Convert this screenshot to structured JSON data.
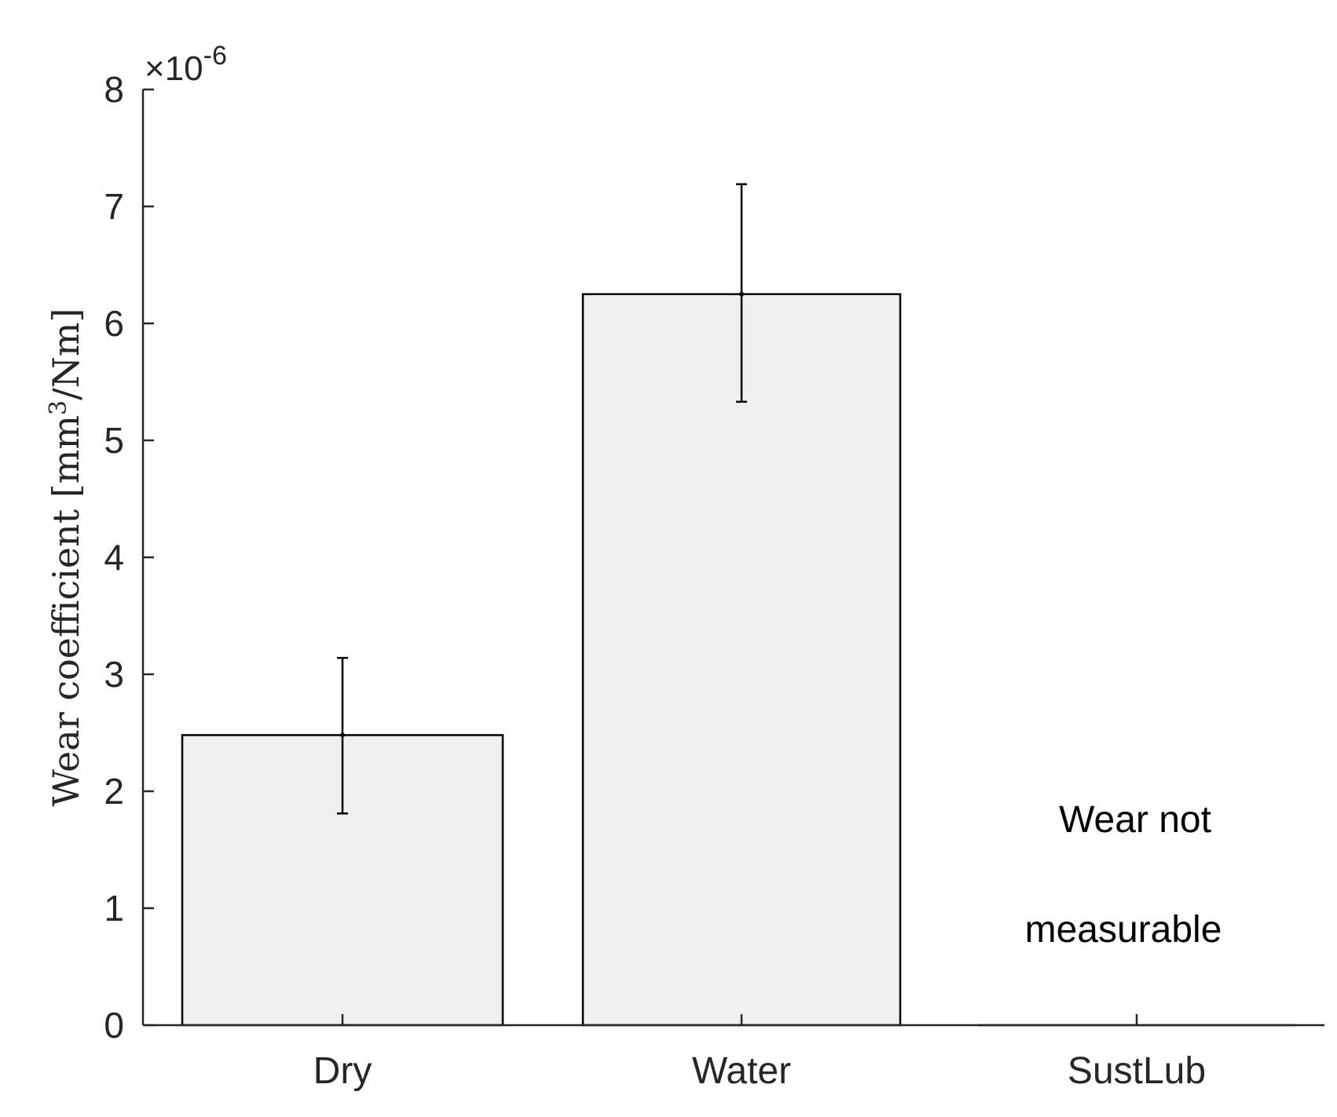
{
  "chart_data": {
    "type": "bar",
    "title": "",
    "categories": [
      "Dry",
      "Water",
      "SustLub"
    ],
    "values": [
      2.48,
      6.25,
      0
    ],
    "error_low": [
      1.81,
      5.33,
      null
    ],
    "error_high": [
      3.14,
      7.19,
      null
    ],
    "xlabel": "",
    "ylabel": "Wear coefficient [mm",
    "ylabel_sup": "3",
    "ylabel_tail": "/Nm]",
    "y_multiplier": "×10",
    "y_multiplier_exp": "-6",
    "ylim": [
      0,
      8
    ],
    "yticks": [
      "0",
      "1",
      "2",
      "3",
      "4",
      "5",
      "6",
      "7",
      "8"
    ],
    "grid": false,
    "legend": "none",
    "bar_color": "#efefef",
    "edge_color": "#000000",
    "annotation": {
      "category": "SustLub",
      "line1": "Wear not",
      "line2": "measurable"
    }
  }
}
